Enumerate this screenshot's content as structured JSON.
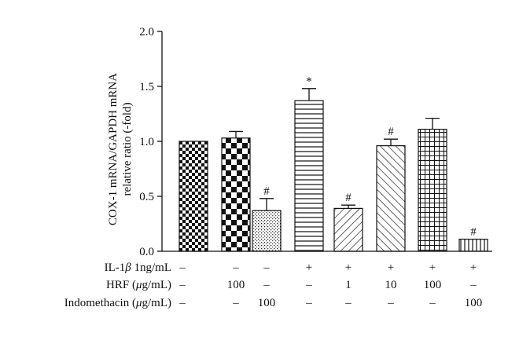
{
  "chart_data": {
    "type": "bar",
    "ylabel_line1": "COX-1 mRNA/GAPDH mRNA",
    "ylabel_line2": "relative ratio (-fold)",
    "ylim": [
      0,
      2.0
    ],
    "yticks": [
      "0.0",
      "0.5",
      "1.0",
      "1.5",
      "2.0"
    ],
    "ytick_values": [
      0,
      0.5,
      1.0,
      1.5,
      2.0
    ],
    "bars": [
      {
        "value": 1.0,
        "error": 0.0,
        "pattern": "checker-small",
        "marker": ""
      },
      {
        "value": 1.03,
        "error": 0.06,
        "pattern": "checker-large",
        "marker": ""
      },
      {
        "value": 0.37,
        "error": 0.11,
        "pattern": "dots",
        "marker": "#"
      },
      {
        "value": 1.37,
        "error": 0.11,
        "pattern": "hlines",
        "marker": "*"
      },
      {
        "value": 0.39,
        "error": 0.03,
        "pattern": "diag-right",
        "marker": "#"
      },
      {
        "value": 0.96,
        "error": 0.06,
        "pattern": "diag-left",
        "marker": "#"
      },
      {
        "value": 1.11,
        "error": 0.1,
        "pattern": "grid",
        "marker": ""
      },
      {
        "value": 0.11,
        "error": 0.0,
        "pattern": "vlines",
        "marker": "#"
      }
    ],
    "conditions": [
      {
        "label_pre": "IL-1",
        "label_italic": "β",
        "label_post": " 1ng/mL",
        "values": [
          "–",
          "–",
          "–",
          "+",
          "+",
          "+",
          "+",
          "+"
        ]
      },
      {
        "label_pre": "HRF (",
        "label_italic": "μ",
        "label_post": "g/mL)",
        "values": [
          "–",
          "100",
          "–",
          "–",
          "1",
          "10",
          "100",
          "–"
        ]
      },
      {
        "label_pre": "Indomethacin (",
        "label_italic": "μ",
        "label_post": "g/mL)",
        "values": [
          "–",
          "–",
          "100",
          "–",
          "–",
          "–",
          "–",
          "100"
        ]
      }
    ]
  }
}
